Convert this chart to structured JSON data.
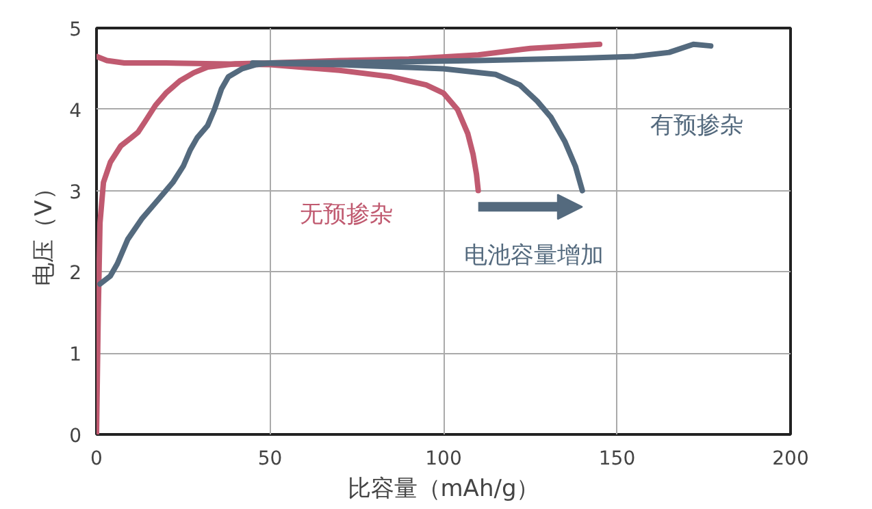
{
  "chart_data": {
    "type": "line",
    "xlabel": "比容量（mAh/g）",
    "ylabel": "电压（V）",
    "xlim": [
      0,
      200
    ],
    "ylim": [
      0,
      5
    ],
    "xticks": [
      0,
      50,
      100,
      150,
      200
    ],
    "yticks": [
      0,
      1,
      2,
      3,
      4,
      5
    ],
    "grid": true,
    "marker": "none",
    "line_style": "solid",
    "series": [
      {
        "color": "#c05a70",
        "x": [
          0,
          0.5,
          1,
          2,
          4,
          7,
          10,
          12,
          14,
          17,
          20,
          24,
          28,
          32,
          40,
          50,
          70,
          90,
          110,
          125,
          145
        ],
        "values": [
          0,
          1.5,
          2.6,
          3.1,
          3.35,
          3.55,
          3.65,
          3.72,
          3.85,
          4.05,
          4.2,
          4.35,
          4.45,
          4.52,
          4.56,
          4.57,
          4.6,
          4.62,
          4.67,
          4.75,
          4.8
        ]
      },
      {
        "color": "#c05a70",
        "x": [
          0,
          3,
          8,
          20,
          50,
          70,
          85,
          95,
          100,
          104,
          107,
          108.5,
          109.5,
          110
        ],
        "values": [
          4.65,
          4.6,
          4.57,
          4.57,
          4.55,
          4.48,
          4.4,
          4.3,
          4.2,
          4.0,
          3.7,
          3.45,
          3.2,
          3.0
        ]
      },
      {
        "color": "#546a7e",
        "x": [
          1,
          4,
          6,
          9,
          13,
          18,
          22,
          25,
          27,
          29,
          32,
          34,
          36,
          38,
          42,
          46,
          50,
          80,
          110,
          140,
          155,
          165,
          172,
          177
        ],
        "values": [
          1.85,
          1.95,
          2.1,
          2.4,
          2.65,
          2.9,
          3.1,
          3.3,
          3.5,
          3.65,
          3.8,
          4.0,
          4.25,
          4.4,
          4.5,
          4.55,
          4.57,
          4.58,
          4.6,
          4.63,
          4.65,
          4.7,
          4.8,
          4.78
        ]
      },
      {
        "color": "#546a7e",
        "x": [
          45,
          70,
          100,
          115,
          122,
          127,
          131,
          135,
          138,
          140
        ],
        "values": [
          4.57,
          4.55,
          4.5,
          4.43,
          4.3,
          4.1,
          3.9,
          3.6,
          3.3,
          3.0
        ]
      }
    ],
    "annotations": [
      "无预掺杂",
      "有预掺杂",
      "电池容量增加"
    ]
  }
}
